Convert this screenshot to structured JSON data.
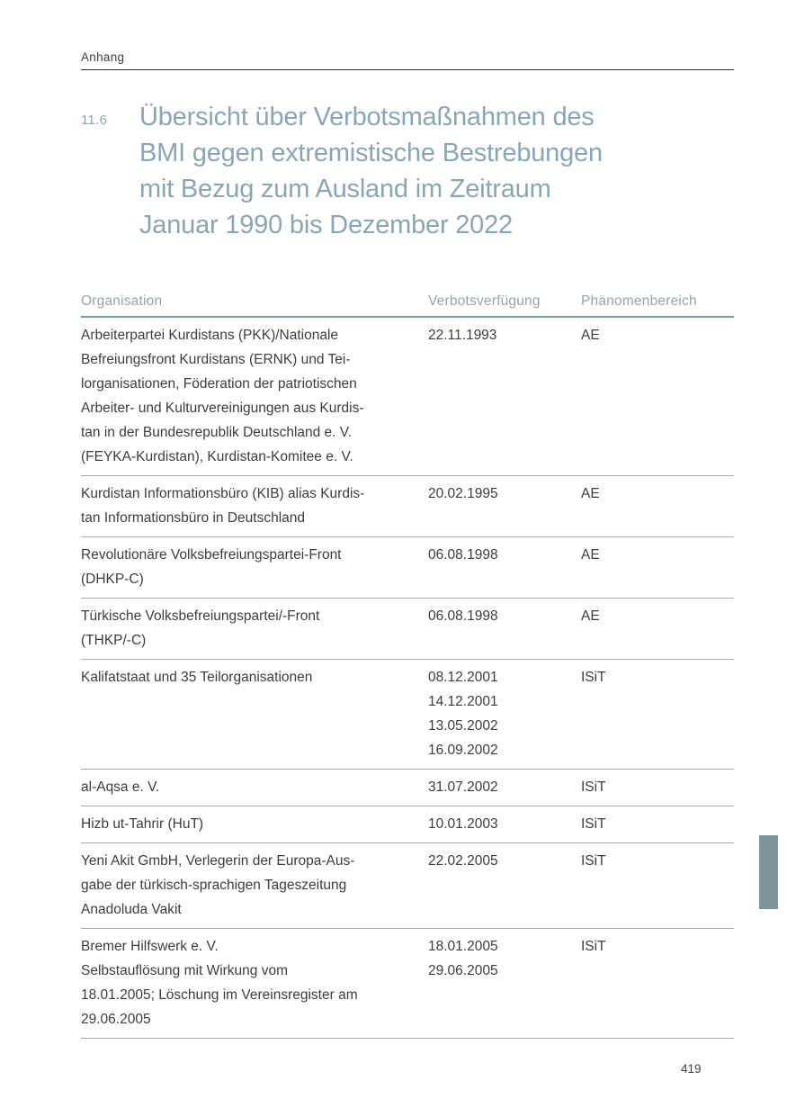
{
  "page": {
    "running_header": "Anhang",
    "page_number": "419"
  },
  "section": {
    "number": "11.6",
    "title_lines": [
      "Übersicht über Verbotsmaßnahmen des",
      "BMI gegen extremistische Bestrebungen",
      "mit Bezug zum Ausland im Zeitraum",
      "Januar 1990 bis Dezember 2022"
    ]
  },
  "table": {
    "columns": [
      "Organisation",
      "Verbotsverfügung",
      "Phänomenbereich"
    ],
    "rows": [
      {
        "organisation_lines": [
          "Arbeiterpartei Kurdistans (PKK)/Nationale",
          "Befreiungsfront Kurdistans (ERNK) und Tei-",
          "lorganisationen, Föderation der patriotischen",
          "Arbeiter- und Kulturvereinigungen aus Kurdis-",
          "tan in der Bundesrepublik Deutschland e. V.",
          "(FEYKA-Kurdistan), Kurdistan-Komitee e. V."
        ],
        "dates": [
          "22.11.1993"
        ],
        "area": "AE"
      },
      {
        "organisation_lines": [
          "Kurdistan Informationsbüro (KIB) alias Kurdis-",
          "tan Informationsbüro in Deutschland"
        ],
        "dates": [
          "20.02.1995"
        ],
        "area": "AE"
      },
      {
        "organisation_lines": [
          "Revolutionäre Volksbefreiungspartei-Front",
          "(DHKP-C)"
        ],
        "dates": [
          "06.08.1998"
        ],
        "area": "AE"
      },
      {
        "organisation_lines": [
          "Türkische Volksbefreiungspartei/-Front",
          "(THKP/-C)"
        ],
        "dates": [
          "06.08.1998"
        ],
        "area": "AE"
      },
      {
        "organisation_lines": [
          "Kalifatstaat und 35 Teilorganisationen"
        ],
        "dates": [
          "08.12.2001",
          "14.12.2001",
          "13.05.2002",
          "16.09.2002"
        ],
        "area": "ISiT"
      },
      {
        "organisation_lines": [
          "al-Aqsa e. V."
        ],
        "dates": [
          "31.07.2002"
        ],
        "area": "ISiT"
      },
      {
        "organisation_lines": [
          "Hizb ut-Tahrir (HuT)"
        ],
        "dates": [
          "10.01.2003"
        ],
        "area": "ISiT"
      },
      {
        "organisation_lines": [
          "Yeni Akit GmbH, Verlegerin der Europa-Aus-",
          "gabe der türkisch-sprachigen Tageszeitung",
          "Anadoluda Vakit"
        ],
        "dates": [
          "22.02.2005"
        ],
        "area": "ISiT"
      },
      {
        "organisation_lines": [
          "Bremer Hilfswerk e. V.",
          "Selbstauflösung mit Wirkung vom",
          "18.01.2005; Löschung im Vereinsregister am",
          "29.06.2005"
        ],
        "dates": [
          "18.01.2005",
          "29.06.2005"
        ],
        "area": "ISiT"
      }
    ]
  },
  "colors": {
    "title": "#8ca5b3",
    "table_header_text": "#9aa3a5",
    "table_header_rule": "#7f99a1",
    "row_separator": "#a2acaf",
    "body_text": "#3a3e40",
    "edge_tab": "#7e949d"
  }
}
